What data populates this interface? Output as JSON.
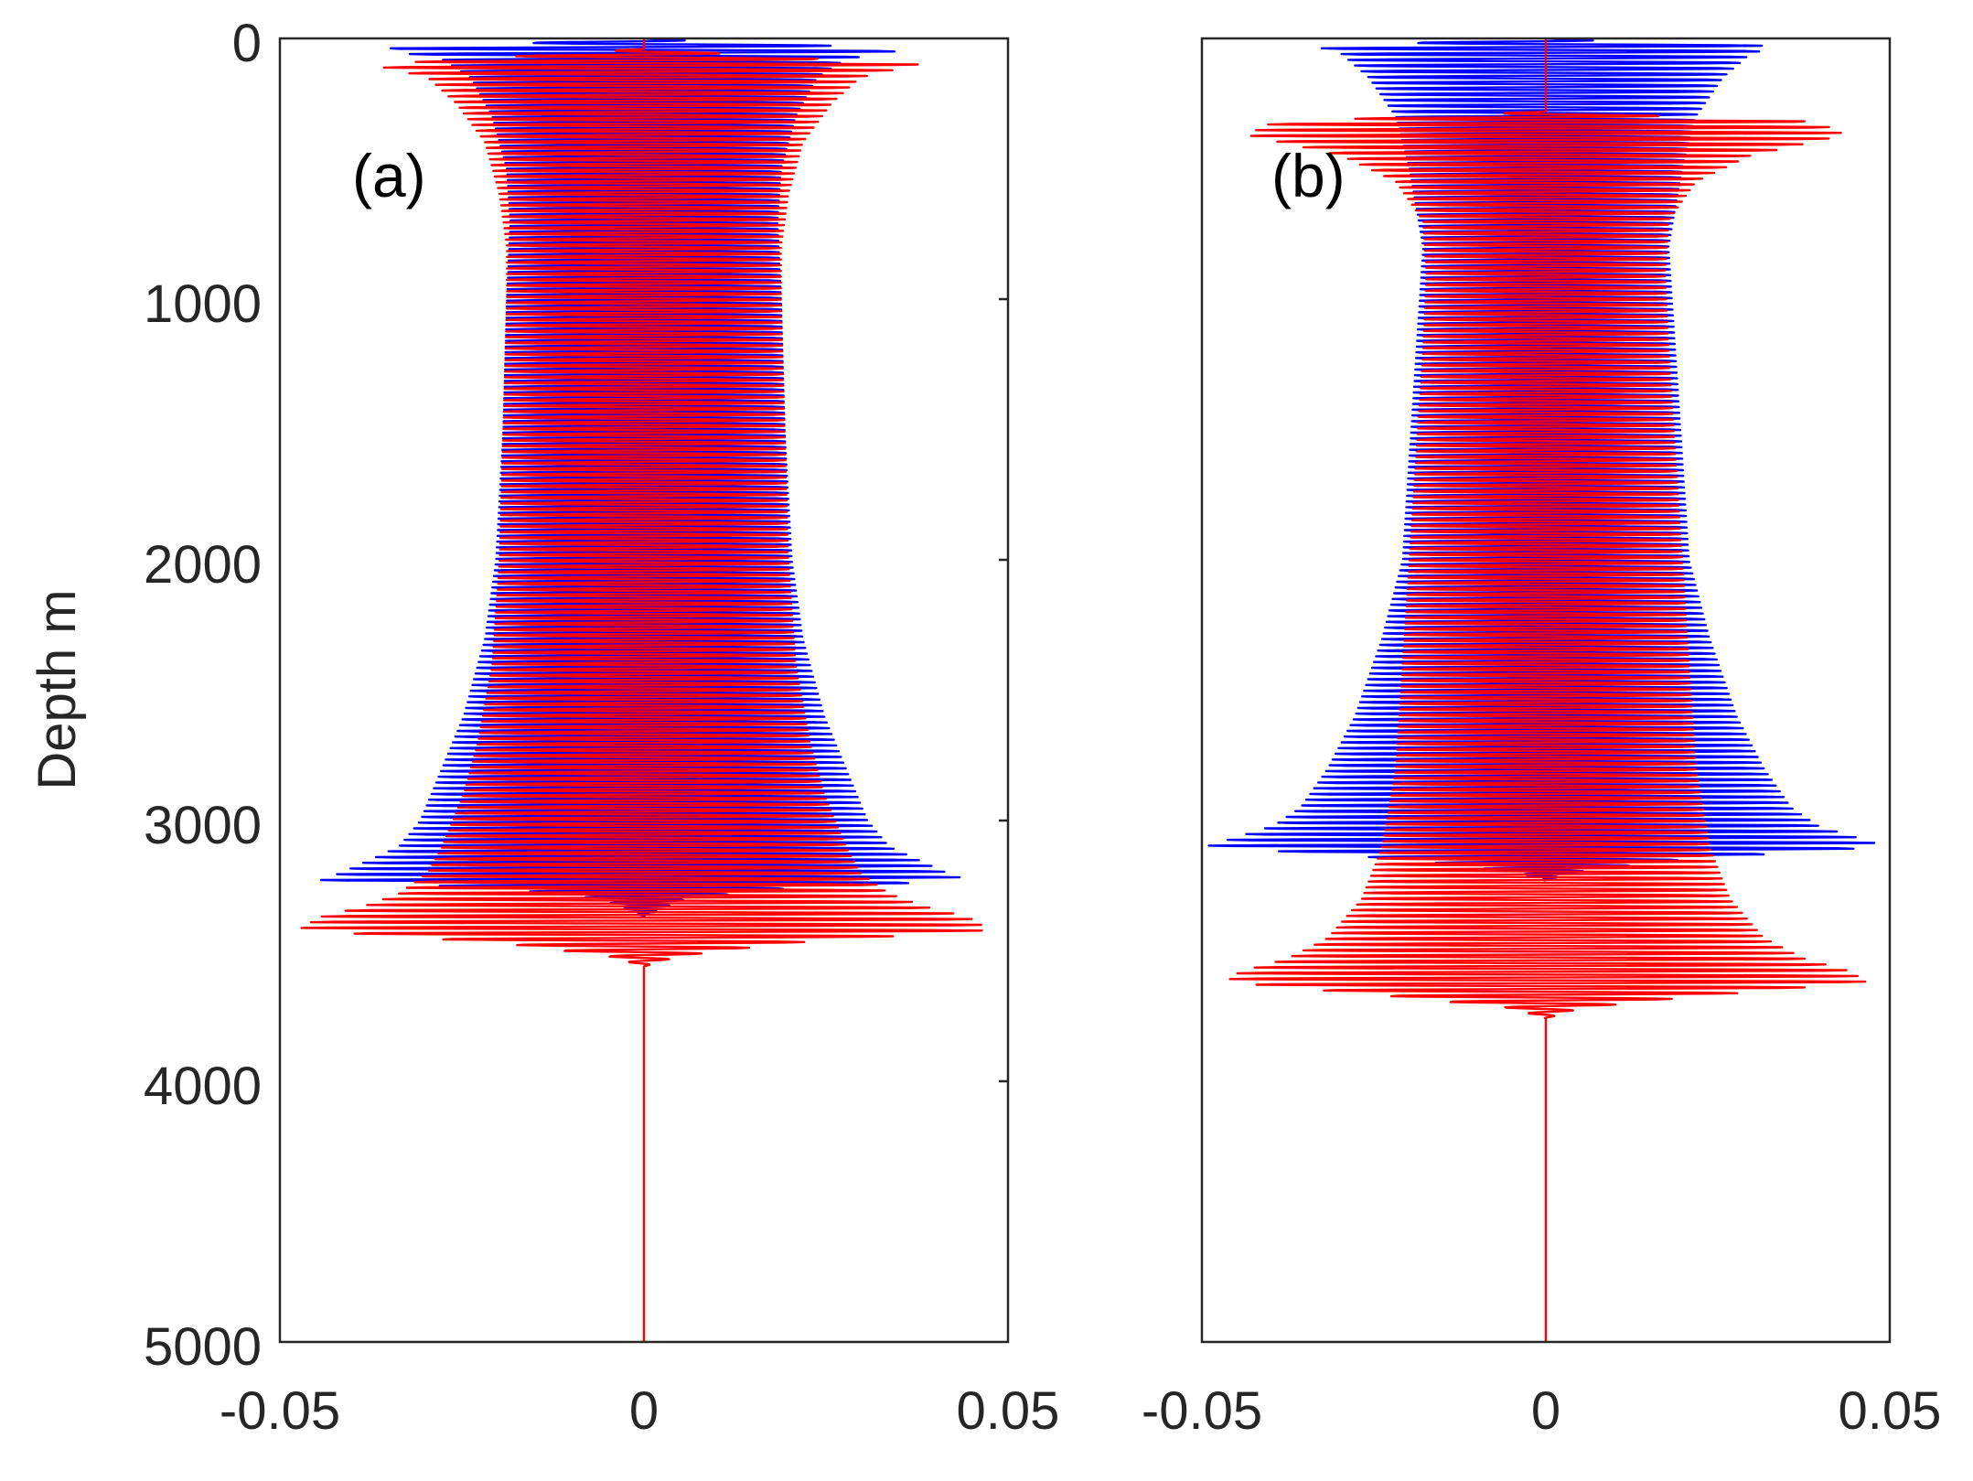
{
  "chart_data": [
    {
      "type": "line",
      "panel_label": "(a)",
      "ylabel": "Depth m",
      "xlabel": "",
      "xlim": [
        -0.05,
        0.05
      ],
      "ylim": [
        0,
        5000
      ],
      "y_reversed": true,
      "x_ticks": [
        "-0.05",
        "0",
        "0.05"
      ],
      "y_ticks": [
        "0",
        "1000",
        "2000",
        "3000",
        "4000",
        "5000"
      ],
      "series": [
        {
          "name": "blue trace",
          "color": "#0000ff",
          "start_depth": 0,
          "end_depth": 3370,
          "period": 22,
          "envelope": {
            "depths": [
              0,
              40,
              80,
              150,
              300,
              500,
              700,
              1000,
              1500,
              2000,
              2300,
              2600,
              2800,
              3000,
              3100,
              3150,
              3200,
              3230,
              3260,
              3300,
              3370
            ],
            "amplitudes": [
              0.0,
              0.037,
              0.028,
              0.024,
              0.021,
              0.019,
              0.0185,
              0.019,
              0.0195,
              0.0205,
              0.022,
              0.025,
              0.028,
              0.031,
              0.034,
              0.038,
              0.042,
              0.045,
              0.02,
              0.006,
              0.0
            ]
          }
        },
        {
          "name": "red trace",
          "color": "#ff0000",
          "start_depth": 40,
          "end_depth": 3560,
          "period": 22,
          "envelope": {
            "depths": [
              40,
              100,
              150,
              250,
              400,
              600,
              800,
              1000,
              1500,
              2000,
              2400,
              2700,
              2900,
              3100,
              3200,
              3280,
              3330,
              3370,
              3420,
              3470,
              3520,
              3560
            ],
            "amplitudes": [
              0.0,
              0.038,
              0.03,
              0.026,
              0.022,
              0.02,
              0.019,
              0.019,
              0.0195,
              0.02,
              0.021,
              0.023,
              0.025,
              0.028,
              0.03,
              0.034,
              0.039,
              0.045,
              0.048,
              0.02,
              0.005,
              0.0
            ]
          }
        }
      ]
    },
    {
      "type": "line",
      "panel_label": "(b)",
      "ylabel": "",
      "xlabel": "",
      "xlim": [
        -0.05,
        0.05
      ],
      "ylim": [
        0,
        5000
      ],
      "y_reversed": true,
      "x_ticks": [
        "-0.05",
        "0",
        "0.05"
      ],
      "y_ticks": [],
      "series": [
        {
          "name": "blue trace",
          "color": "#0000ff",
          "start_depth": 0,
          "end_depth": 3230,
          "period": 22,
          "envelope": {
            "depths": [
              0,
              30,
              60,
              150,
              300,
              500,
              800,
              1200,
              1600,
              2000,
              2300,
              2600,
              2800,
              2950,
              3020,
              3060,
              3100,
              3150,
              3200,
              3230
            ],
            "amplitudes": [
              0.0,
              0.034,
              0.03,
              0.026,
              0.022,
              0.02,
              0.018,
              0.019,
              0.02,
              0.021,
              0.024,
              0.028,
              0.032,
              0.036,
              0.04,
              0.045,
              0.05,
              0.02,
              0.004,
              0.0
            ]
          }
        },
        {
          "name": "red trace",
          "color": "#ff0000",
          "start_depth": 280,
          "end_depth": 3760,
          "period": 22,
          "envelope": {
            "depths": [
              280,
              320,
              370,
              450,
              550,
              700,
              900,
              1200,
              1600,
              2000,
              2400,
              2800,
              3100,
              3300,
              3450,
              3530,
              3580,
              3620,
              3680,
              3720,
              3760
            ],
            "amplitudes": [
              0.0,
              0.04,
              0.044,
              0.03,
              0.022,
              0.018,
              0.0175,
              0.018,
              0.019,
              0.02,
              0.021,
              0.022,
              0.024,
              0.027,
              0.032,
              0.038,
              0.045,
              0.047,
              0.02,
              0.005,
              0.0
            ]
          }
        }
      ]
    }
  ]
}
